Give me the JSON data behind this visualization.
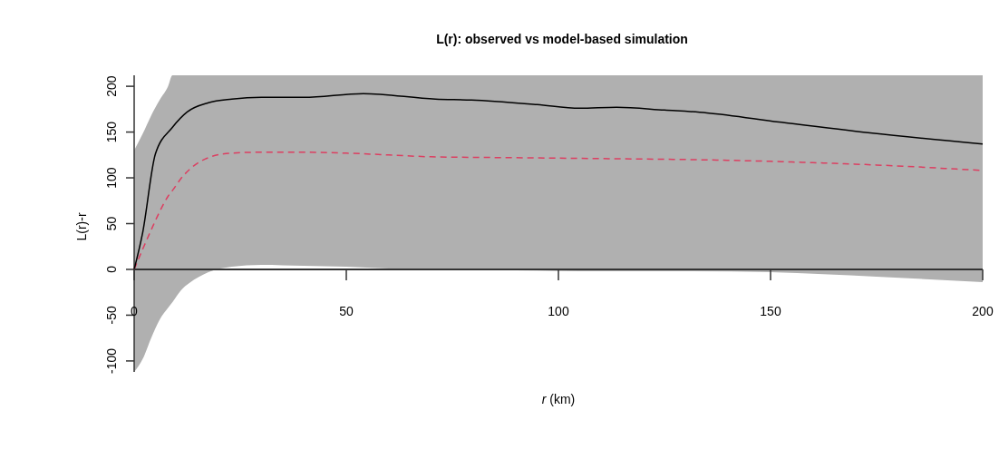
{
  "chart_data": {
    "type": "line",
    "title": "L(r): observed vs model-based simulation",
    "xlabel": "r (km)",
    "ylabel": "L(r)-r",
    "xlim": [
      0,
      200
    ],
    "ylim": [
      -112,
      212
    ],
    "xticks": [
      0,
      50,
      100,
      150,
      200
    ],
    "yticks": [
      -100,
      -50,
      0,
      50,
      100,
      150,
      200
    ],
    "series": [
      {
        "color": "#dc3f61",
        "line_style": "dashed",
        "x": [
          0,
          2,
          4,
          6,
          8,
          9,
          11,
          13,
          17.5,
          23,
          30,
          40,
          50,
          60,
          70,
          90,
          110,
          130,
          150,
          175,
          200
        ],
        "values": [
          0,
          22,
          43,
          63,
          80,
          86,
          99,
          109,
          122,
          127,
          128,
          128,
          127,
          125,
          123,
          122,
          121,
          120,
          118,
          114,
          108
        ],
        "lower": [
          -112,
          -98,
          -75,
          -55,
          -42,
          -36,
          -23,
          -15,
          -3,
          3,
          5,
          4,
          3,
          1,
          0,
          -1,
          -2,
          -2,
          -3,
          -8,
          -14
        ],
        "upper": [
          130,
          148,
          168,
          185,
          200,
          212,
          212,
          212,
          212,
          212,
          212,
          212,
          212,
          212,
          212,
          212,
          212,
          212,
          212,
          212,
          212
        ]
      },
      {
        "color": "#000000",
        "line_style": "solid",
        "x": [
          0,
          2,
          5,
          9,
          12.5,
          17.5,
          23,
          30,
          40,
          54,
          71,
          79.5,
          95,
          105,
          113.7,
          125,
          135,
          152,
          173.5,
          200
        ],
        "values": [
          0,
          40,
          126,
          155,
          172,
          182,
          186,
          188,
          188,
          192,
          186,
          185,
          180,
          176,
          177,
          174,
          171,
          161,
          149,
          137
        ]
      }
    ]
  }
}
